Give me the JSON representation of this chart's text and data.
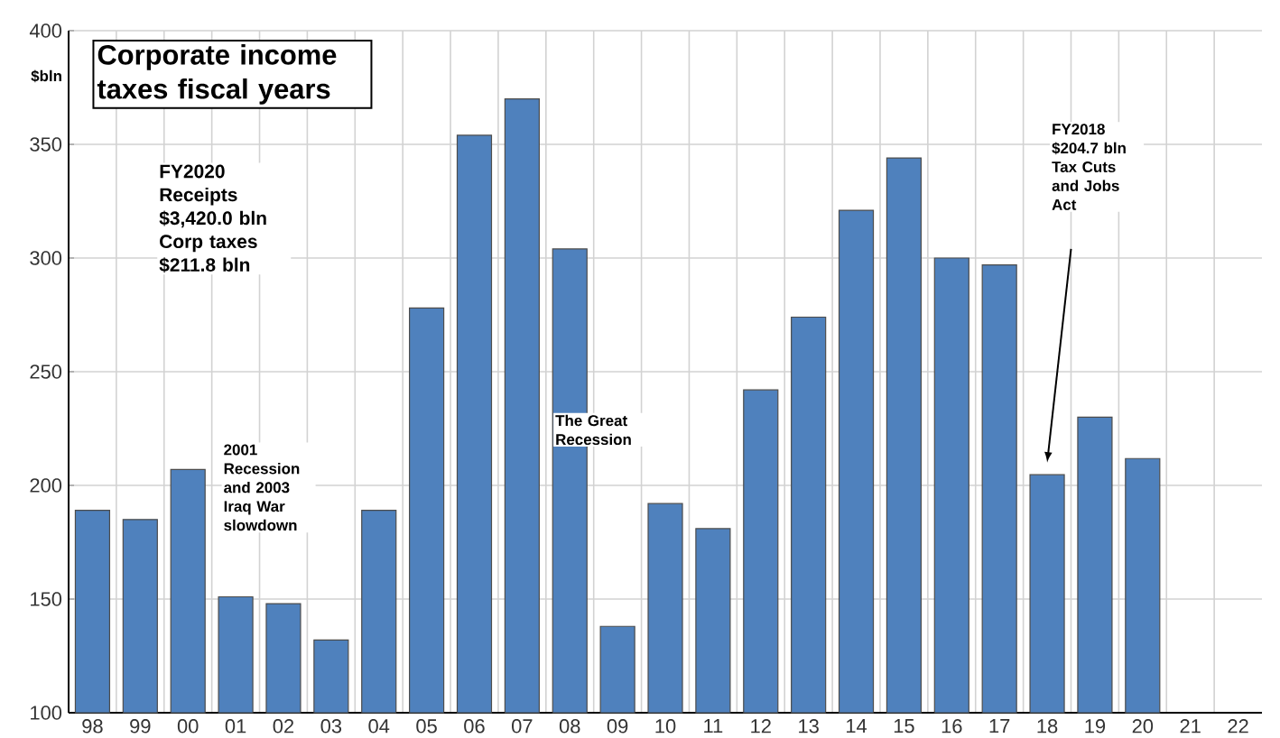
{
  "chart_data": {
    "type": "bar",
    "title": "Corporate income taxes fiscal years",
    "ylabel": "$bln",
    "categories": [
      "98",
      "99",
      "00",
      "01",
      "02",
      "03",
      "04",
      "05",
      "06",
      "07",
      "08",
      "09",
      "10",
      "11",
      "12",
      "13",
      "14",
      "15",
      "16",
      "17",
      "18",
      "19",
      "20",
      "21",
      "22"
    ],
    "values": [
      189,
      185,
      207,
      151,
      148,
      132,
      189,
      278,
      354,
      370,
      304,
      138,
      192,
      181,
      242,
      274,
      321,
      344,
      300,
      297,
      204.7,
      230,
      211.8,
      null,
      null
    ],
    "color": "#4f81bd",
    "ylim": [
      100,
      400
    ],
    "yticks": [
      100,
      150,
      200,
      250,
      300,
      350,
      400
    ],
    "grid": true,
    "annotations": [
      "FY2020 Receipts $3,420.0 bln Corp taxes $211.8 bln",
      "2001 Recession and 2003 Iraq War slowdown",
      "The Great Recession",
      "FY2018 $204.7 bln Tax Cuts and Jobs Act"
    ]
  }
}
